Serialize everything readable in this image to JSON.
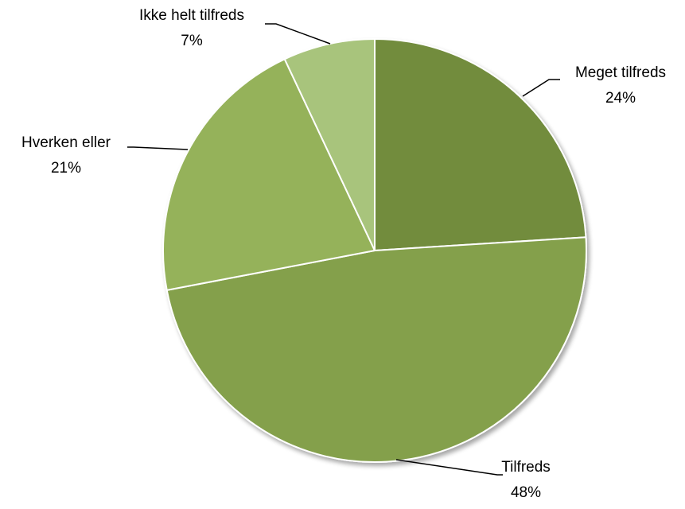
{
  "chart_data": {
    "type": "pie",
    "title": "",
    "slices": [
      {
        "label": "Meget tilfreds",
        "value": 24,
        "display": "24%",
        "color": "#728c3e"
      },
      {
        "label": "Tilfreds",
        "value": 48,
        "display": "48%",
        "color": "#84a04c"
      },
      {
        "label": "Hverken eller",
        "value": 21,
        "display": "21%",
        "color": "#95b25a"
      },
      {
        "label": "Ikke helt tilfreds",
        "value": 7,
        "display": "7%",
        "color": "#a8c47c"
      }
    ],
    "start": "12 o'clock",
    "direction": "clockwise",
    "legend": "none",
    "data_labels": "outside with leader lines"
  }
}
